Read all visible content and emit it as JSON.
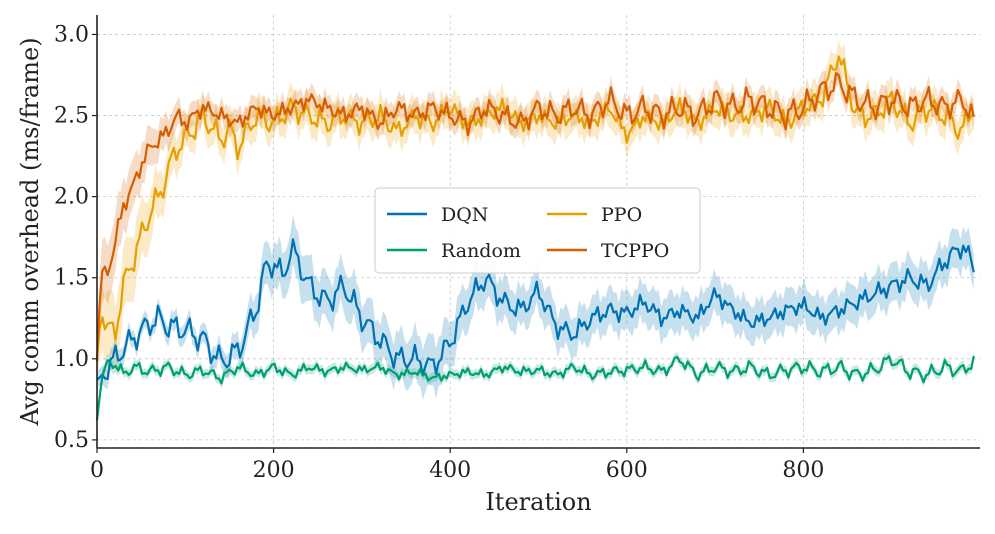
{
  "chart_data": {
    "type": "line",
    "title": "",
    "xlabel": "Iteration",
    "ylabel": "Avg comm overhead (ms/frame)",
    "xlim": [
      0,
      1000
    ],
    "ylim": [
      0.45,
      3.12
    ],
    "xticks": [
      0,
      200,
      400,
      600,
      800
    ],
    "yticks": [
      0.5,
      1.0,
      1.5,
      2.0,
      2.5,
      3.0
    ],
    "xtick_labels": [
      "0",
      "200",
      "400",
      "600",
      "800"
    ],
    "ytick_labels": [
      "0.5",
      "1.0",
      "1.5",
      "2.0",
      "2.5",
      "3.0"
    ],
    "grid": true,
    "legend_position": "center",
    "legend_columns": 2,
    "series": [
      {
        "name": "DQN",
        "color": "#0072B2",
        "x": [
          0,
          10,
          20,
          40,
          60,
          70,
          80,
          100,
          120,
          140,
          160,
          180,
          190,
          200,
          210,
          220,
          230,
          240,
          260,
          280,
          300,
          320,
          340,
          360,
          380,
          400,
          420,
          440,
          460,
          480,
          500,
          520,
          540,
          560,
          580,
          600,
          620,
          640,
          660,
          680,
          700,
          720,
          740,
          760,
          780,
          800,
          820,
          840,
          860,
          880,
          900,
          920,
          940,
          960,
          980,
          995
        ],
        "values": [
          0.85,
          0.93,
          1.0,
          1.12,
          1.22,
          1.25,
          1.2,
          1.18,
          1.12,
          0.98,
          1.05,
          1.3,
          1.55,
          1.6,
          1.5,
          1.68,
          1.58,
          1.45,
          1.35,
          1.45,
          1.25,
          1.12,
          1.0,
          1.0,
          0.95,
          1.1,
          1.35,
          1.5,
          1.35,
          1.3,
          1.42,
          1.2,
          1.15,
          1.25,
          1.3,
          1.28,
          1.35,
          1.25,
          1.3,
          1.25,
          1.4,
          1.3,
          1.22,
          1.25,
          1.3,
          1.33,
          1.25,
          1.3,
          1.35,
          1.4,
          1.45,
          1.5,
          1.45,
          1.6,
          1.7,
          1.55
        ],
        "band": [
          0.05,
          0.06,
          0.07,
          0.05,
          0.05,
          0.05,
          0.06,
          0.06,
          0.06,
          0.07,
          0.08,
          0.12,
          0.13,
          0.14,
          0.14,
          0.15,
          0.15,
          0.14,
          0.14,
          0.14,
          0.14,
          0.14,
          0.14,
          0.15,
          0.16,
          0.14,
          0.14,
          0.13,
          0.13,
          0.12,
          0.12,
          0.12,
          0.12,
          0.12,
          0.12,
          0.12,
          0.12,
          0.12,
          0.12,
          0.12,
          0.12,
          0.12,
          0.12,
          0.12,
          0.12,
          0.12,
          0.12,
          0.12,
          0.12,
          0.12,
          0.12,
          0.12,
          0.12,
          0.12,
          0.12,
          0.11
        ]
      },
      {
        "name": "PPO",
        "color": "#E69F00",
        "x": [
          0,
          5,
          10,
          20,
          30,
          40,
          50,
          60,
          70,
          80,
          90,
          100,
          120,
          140,
          150,
          160,
          180,
          200,
          220,
          240,
          260,
          280,
          300,
          320,
          340,
          360,
          380,
          400,
          420,
          440,
          460,
          480,
          500,
          520,
          540,
          560,
          580,
          600,
          620,
          640,
          660,
          680,
          700,
          720,
          740,
          760,
          780,
          800,
          820,
          840,
          860,
          880,
          900,
          920,
          940,
          960,
          980,
          995
        ],
        "values": [
          1.0,
          1.3,
          1.2,
          1.15,
          1.45,
          1.6,
          1.75,
          1.9,
          2.0,
          2.15,
          2.3,
          2.35,
          2.5,
          2.35,
          2.42,
          2.3,
          2.5,
          2.45,
          2.55,
          2.5,
          2.45,
          2.5,
          2.45,
          2.5,
          2.4,
          2.5,
          2.45,
          2.55,
          2.45,
          2.5,
          2.55,
          2.45,
          2.5,
          2.45,
          2.5,
          2.45,
          2.55,
          2.38,
          2.5,
          2.45,
          2.55,
          2.45,
          2.55,
          2.5,
          2.5,
          2.55,
          2.45,
          2.55,
          2.6,
          2.88,
          2.5,
          2.5,
          2.6,
          2.45,
          2.55,
          2.5,
          2.4,
          2.6
        ],
        "band": [
          0.15,
          0.2,
          0.2,
          0.2,
          0.2,
          0.2,
          0.18,
          0.16,
          0.14,
          0.12,
          0.12,
          0.1,
          0.1,
          0.1,
          0.1,
          0.1,
          0.1,
          0.1,
          0.1,
          0.1,
          0.1,
          0.1,
          0.1,
          0.1,
          0.1,
          0.1,
          0.1,
          0.1,
          0.1,
          0.1,
          0.1,
          0.1,
          0.1,
          0.1,
          0.1,
          0.1,
          0.1,
          0.1,
          0.1,
          0.1,
          0.1,
          0.1,
          0.1,
          0.1,
          0.1,
          0.1,
          0.1,
          0.1,
          0.1,
          0.1,
          0.1,
          0.1,
          0.1,
          0.1,
          0.1,
          0.1,
          0.1,
          0.1
        ]
      },
      {
        "name": "Random",
        "color": "#009E73",
        "x": [
          0,
          5,
          10,
          20,
          30,
          40,
          60,
          80,
          100,
          120,
          140,
          160,
          180,
          200,
          220,
          240,
          260,
          280,
          300,
          320,
          340,
          360,
          380,
          400,
          420,
          440,
          460,
          480,
          500,
          520,
          540,
          560,
          580,
          600,
          620,
          640,
          660,
          680,
          700,
          720,
          740,
          760,
          780,
          800,
          820,
          840,
          860,
          880,
          900,
          920,
          940,
          960,
          980,
          995
        ],
        "values": [
          0.62,
          0.88,
          0.95,
          0.98,
          0.9,
          0.95,
          0.92,
          0.95,
          0.9,
          0.93,
          0.88,
          0.95,
          0.9,
          0.95,
          0.9,
          0.95,
          0.92,
          0.95,
          0.93,
          0.95,
          0.9,
          0.92,
          0.88,
          0.9,
          0.92,
          0.9,
          0.95,
          0.92,
          0.93,
          0.9,
          0.95,
          0.9,
          0.92,
          0.93,
          0.95,
          0.92,
          1.0,
          0.9,
          0.95,
          0.92,
          0.95,
          0.9,
          0.93,
          0.95,
          0.92,
          0.95,
          0.9,
          0.93,
          1.0,
          0.92,
          0.9,
          0.95,
          0.92,
          1.0
        ],
        "band": [
          0.05,
          0.05,
          0.04,
          0.04,
          0.03,
          0.03,
          0.03,
          0.03,
          0.03,
          0.03,
          0.03,
          0.03,
          0.03,
          0.03,
          0.03,
          0.03,
          0.03,
          0.03,
          0.03,
          0.03,
          0.03,
          0.03,
          0.03,
          0.03,
          0.03,
          0.03,
          0.03,
          0.03,
          0.03,
          0.03,
          0.03,
          0.03,
          0.03,
          0.03,
          0.03,
          0.03,
          0.03,
          0.03,
          0.03,
          0.03,
          0.03,
          0.03,
          0.03,
          0.03,
          0.03,
          0.03,
          0.03,
          0.03,
          0.03,
          0.03,
          0.03,
          0.03,
          0.03,
          0.03
        ]
      },
      {
        "name": "TCPPO",
        "color": "#D55E00",
        "x": [
          0,
          5,
          10,
          20,
          30,
          40,
          50,
          60,
          70,
          80,
          90,
          100,
          120,
          140,
          160,
          180,
          200,
          220,
          240,
          260,
          280,
          300,
          320,
          340,
          360,
          380,
          400,
          420,
          440,
          460,
          480,
          500,
          520,
          540,
          560,
          580,
          600,
          620,
          640,
          660,
          680,
          700,
          720,
          740,
          760,
          780,
          800,
          820,
          840,
          860,
          880,
          900,
          920,
          940,
          960,
          980,
          995
        ],
        "values": [
          1.0,
          1.55,
          1.5,
          1.7,
          1.95,
          2.05,
          2.2,
          2.3,
          2.35,
          2.4,
          2.5,
          2.45,
          2.55,
          2.5,
          2.45,
          2.55,
          2.5,
          2.55,
          2.6,
          2.55,
          2.5,
          2.55,
          2.45,
          2.55,
          2.5,
          2.55,
          2.5,
          2.45,
          2.55,
          2.5,
          2.45,
          2.55,
          2.5,
          2.55,
          2.5,
          2.6,
          2.5,
          2.55,
          2.5,
          2.55,
          2.5,
          2.6,
          2.55,
          2.6,
          2.55,
          2.5,
          2.55,
          2.65,
          2.7,
          2.6,
          2.55,
          2.6,
          2.55,
          2.6,
          2.55,
          2.6,
          2.45
        ],
        "band": [
          0.15,
          0.2,
          0.18,
          0.18,
          0.16,
          0.15,
          0.13,
          0.12,
          0.1,
          0.1,
          0.08,
          0.08,
          0.07,
          0.07,
          0.07,
          0.07,
          0.07,
          0.07,
          0.07,
          0.07,
          0.07,
          0.07,
          0.07,
          0.07,
          0.07,
          0.07,
          0.07,
          0.07,
          0.07,
          0.07,
          0.07,
          0.07,
          0.07,
          0.07,
          0.07,
          0.07,
          0.07,
          0.07,
          0.07,
          0.07,
          0.07,
          0.07,
          0.07,
          0.07,
          0.07,
          0.07,
          0.07,
          0.07,
          0.07,
          0.07,
          0.07,
          0.07,
          0.07,
          0.07,
          0.07,
          0.07,
          0.07
        ]
      }
    ]
  }
}
